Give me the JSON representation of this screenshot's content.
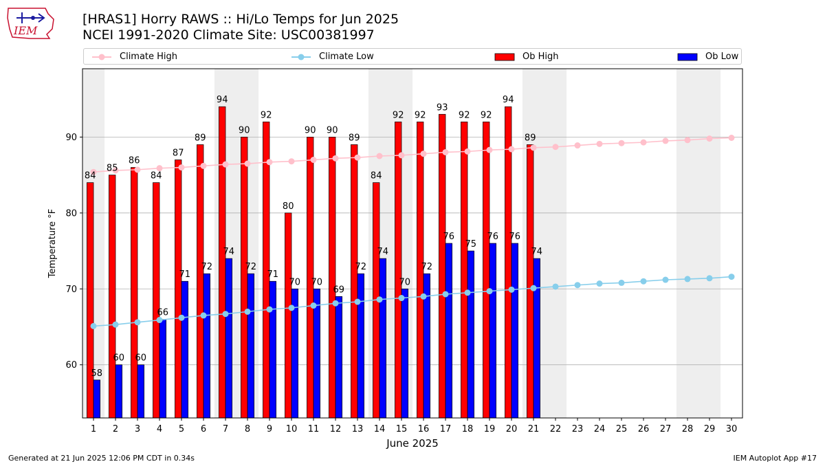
{
  "header": {
    "title_line1": "[HRAS1] Horry RAWS :: Hi/Lo Temps for Jun 2025",
    "title_line2": "NCEI 1991-2020 Climate Site: USC00381997"
  },
  "logo": {
    "text": "IEM"
  },
  "footer": {
    "left": "Generated at 21 Jun 2025 12:06 PM CDT in 0.34s",
    "right": "IEM Autoplot App #17"
  },
  "legend": {
    "climate_high": "Climate High",
    "climate_low": "Climate Low",
    "ob_high": "Ob High",
    "ob_low": "Ob Low"
  },
  "colors": {
    "ob_high": "#ff0000",
    "ob_low": "#0000ff",
    "climate_high": "#ffc0cb",
    "climate_low": "#87ceeb",
    "weekend_shade": "#eeeeee",
    "grid": "#b0b0b0"
  },
  "chart_data": {
    "type": "bar",
    "xlabel": "June 2025",
    "ylabel": "Temperature °F",
    "ylim": [
      53,
      99
    ],
    "yticks": [
      60,
      70,
      80,
      90
    ],
    "days": [
      1,
      2,
      3,
      4,
      5,
      6,
      7,
      8,
      9,
      10,
      11,
      12,
      13,
      14,
      15,
      16,
      17,
      18,
      19,
      20,
      21,
      22,
      23,
      24,
      25,
      26,
      27,
      28,
      29,
      30
    ],
    "weekend_days": [
      1,
      7,
      8,
      14,
      15,
      21,
      22,
      28,
      29
    ],
    "ob_high": [
      84,
      85,
      86,
      84,
      87,
      89,
      94,
      90,
      92,
      80,
      90,
      90,
      89,
      84,
      92,
      92,
      93,
      92,
      92,
      94,
      89
    ],
    "ob_low": [
      58,
      60,
      60,
      66,
      71,
      72,
      74,
      72,
      71,
      70,
      70,
      69,
      72,
      74,
      70,
      72,
      76,
      75,
      76,
      76,
      74
    ],
    "climate_high": [
      85.4,
      85.6,
      85.7,
      85.9,
      86.0,
      86.2,
      86.4,
      86.5,
      86.7,
      86.8,
      87.0,
      87.2,
      87.3,
      87.5,
      87.6,
      87.8,
      88.0,
      88.1,
      88.3,
      88.4,
      88.6,
      88.7,
      88.9,
      89.1,
      89.2,
      89.3,
      89.5,
      89.6,
      89.8,
      89.9
    ],
    "climate_low": [
      65.1,
      65.3,
      65.6,
      65.9,
      66.2,
      66.5,
      66.7,
      67.0,
      67.3,
      67.5,
      67.8,
      68.1,
      68.3,
      68.6,
      68.8,
      69.0,
      69.3,
      69.5,
      69.7,
      69.9,
      70.1,
      70.3,
      70.5,
      70.7,
      70.8,
      71.0,
      71.2,
      71.3,
      71.4,
      71.6
    ],
    "grid": "y-major",
    "legend_position": "top"
  }
}
